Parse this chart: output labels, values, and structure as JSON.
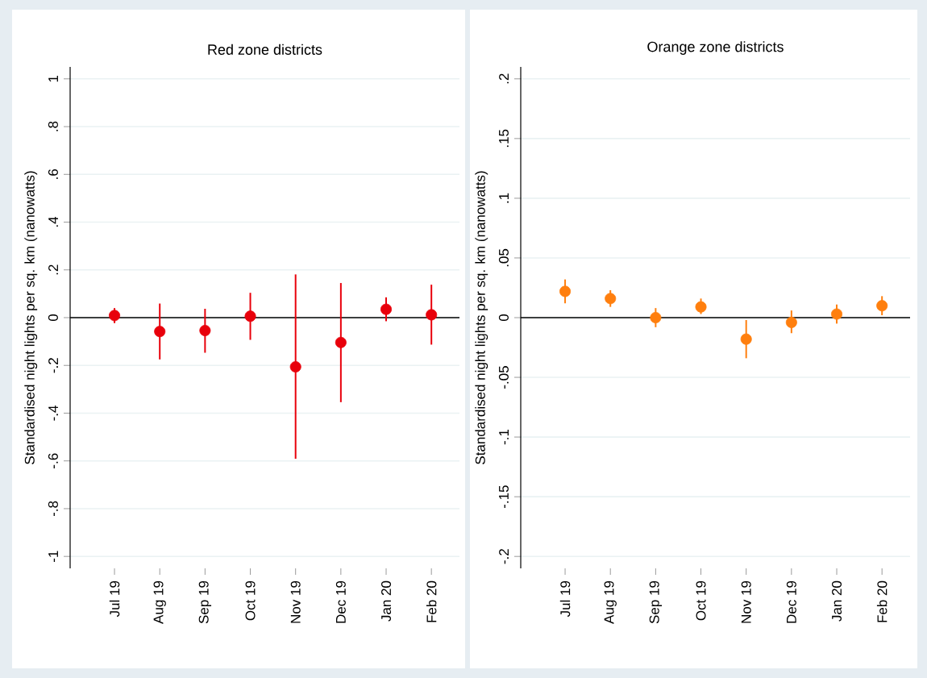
{
  "chart_data": [
    {
      "type": "scatter",
      "title": "Red zone districts",
      "ylabel": "Standardised night lights per sq. km (nanowatts)",
      "categories": [
        "Jul 19",
        "Aug 19",
        "Sep 19",
        "Oct 19",
        "Nov 19",
        "Dec 19",
        "Jan 20",
        "Feb 20"
      ],
      "series": [
        {
          "color": "#e8000b",
          "values": [
            0.009,
            -0.058,
            -0.054,
            0.006,
            -0.206,
            -0.104,
            0.035,
            0.012
          ],
          "errors": [
            [
              -0.023,
              0.04
            ],
            [
              -0.175,
              0.059
            ],
            [
              -0.147,
              0.037
            ],
            [
              -0.093,
              0.104
            ],
            [
              -0.591,
              0.181
            ],
            [
              -0.354,
              0.145
            ],
            [
              -0.015,
              0.085
            ],
            [
              -0.113,
              0.138
            ]
          ]
        }
      ],
      "ylim": [
        -1.05,
        1.05
      ],
      "yticks": [
        {
          "value": -1,
          "label": "-1"
        },
        {
          "value": -0.8,
          "label": "-.8"
        },
        {
          "value": -0.6,
          "label": "-.6"
        },
        {
          "value": -0.4,
          "label": "-.4"
        },
        {
          "value": -0.2,
          "label": "-.2"
        },
        0,
        {
          "value": 0.2,
          "label": ".2"
        },
        {
          "value": 0.4,
          "label": ".4"
        },
        {
          "value": 0.6,
          "label": ".6"
        },
        {
          "value": 0.8,
          "label": ".8"
        },
        1
      ],
      "grid": "y",
      "marker": "circle",
      "ref_lines": [
        {
          "axis": "y",
          "value": 0,
          "color": "#000000"
        }
      ]
    },
    {
      "type": "scatter",
      "title": "Orange zone districts",
      "ylabel": "Standardised night lights per sq. km (nanowatts)",
      "categories": [
        "Jul 19",
        "Aug 19",
        "Sep 19",
        "Oct 19",
        "Nov 19",
        "Dec 19",
        "Jan 20",
        "Feb 20"
      ],
      "series": [
        {
          "color": "#ff7f0e",
          "values": [
            0.022,
            0.016,
            0.0,
            0.009,
            -0.018,
            -0.004,
            0.003,
            0.01
          ],
          "errors": [
            [
              0.012,
              0.032
            ],
            [
              0.009,
              0.023
            ],
            [
              -0.008,
              0.008
            ],
            [
              0.003,
              0.016
            ],
            [
              -0.034,
              -0.002
            ],
            [
              -0.013,
              0.006
            ],
            [
              -0.005,
              0.011
            ],
            [
              0.002,
              0.018
            ]
          ]
        }
      ],
      "ylim": [
        -0.21,
        0.21
      ],
      "yticks": [
        {
          "value": -0.2,
          "label": "-.2"
        },
        {
          "value": -0.15,
          "label": "-.15"
        },
        {
          "value": -0.1,
          "label": "-.1"
        },
        {
          "value": -0.05,
          "label": "-.05"
        },
        0,
        {
          "value": 0.05,
          "label": ".05"
        },
        {
          "value": 0.1,
          "label": ".1"
        },
        {
          "value": 0.15,
          "label": ".15"
        },
        {
          "value": 0.2,
          "label": ".2"
        }
      ],
      "grid": "y",
      "marker": "circle",
      "ref_lines": [
        {
          "axis": "y",
          "value": 0,
          "color": "#000000"
        }
      ]
    }
  ]
}
